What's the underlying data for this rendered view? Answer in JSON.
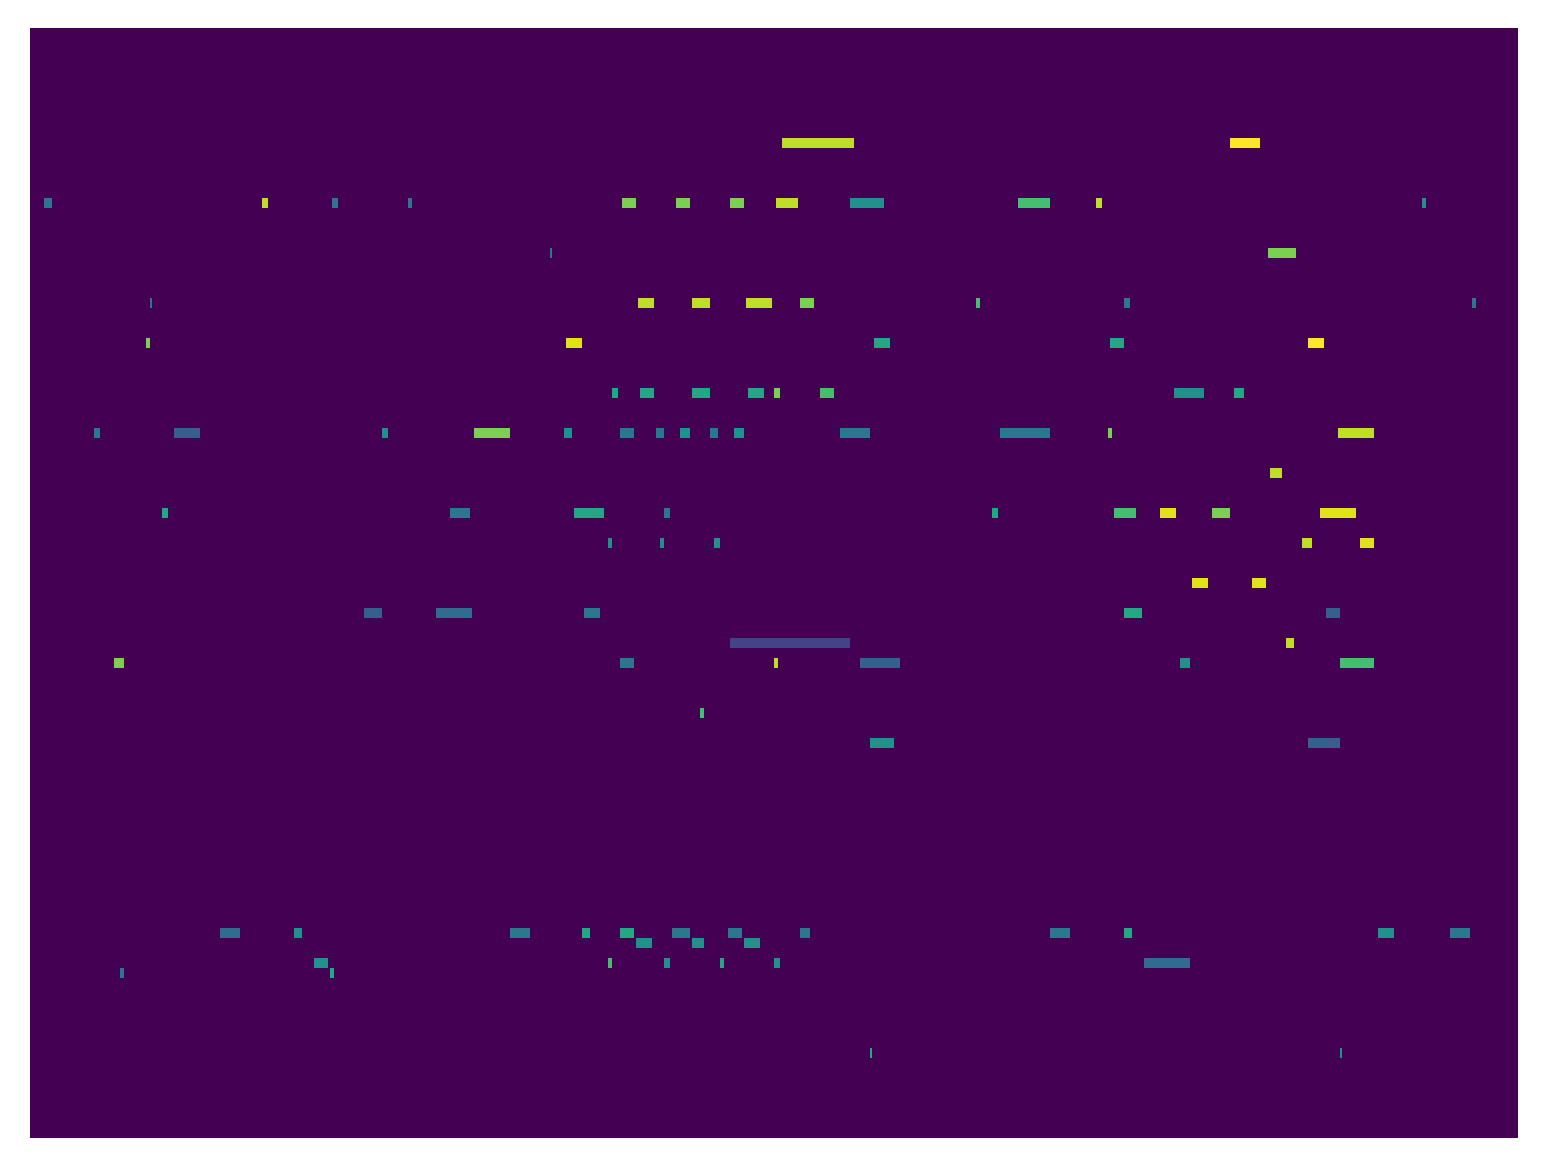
{
  "chart_data": {
    "type": "heatmap",
    "tick_labels": false,
    "xlim": [
      0,
      744
    ],
    "ylim": [
      0,
      111
    ],
    "zlim": [
      0,
      1
    ],
    "cells": [
      [
        376,
        412,
        99,
        0.9
      ],
      [
        600,
        615,
        99,
        1.0
      ],
      [
        7,
        11,
        93,
        0.4
      ],
      [
        116,
        119,
        93,
        0.9
      ],
      [
        151,
        154,
        93,
        0.4
      ],
      [
        189,
        191,
        93,
        0.4
      ],
      [
        296,
        303,
        93,
        0.8
      ],
      [
        323,
        330,
        93,
        0.8
      ],
      [
        350,
        357,
        93,
        0.8
      ],
      [
        373,
        384,
        93,
        0.9
      ],
      [
        410,
        427,
        93,
        0.5
      ],
      [
        494,
        510,
        93,
        0.7
      ],
      [
        533,
        536,
        93,
        0.9
      ],
      [
        696,
        698,
        93,
        0.5
      ],
      [
        619,
        633,
        88,
        0.8
      ],
      [
        260,
        261,
        88,
        0.4
      ],
      [
        304,
        312,
        83,
        0.9
      ],
      [
        331,
        340,
        83,
        0.9
      ],
      [
        358,
        371,
        83,
        0.9
      ],
      [
        385,
        392,
        83,
        0.8
      ],
      [
        473,
        475,
        83,
        0.7
      ],
      [
        547,
        550,
        83,
        0.4
      ],
      [
        721,
        723,
        83,
        0.4
      ],
      [
        60,
        61,
        83,
        0.4
      ],
      [
        268,
        276,
        79,
        0.95
      ],
      [
        422,
        430,
        79,
        0.6
      ],
      [
        540,
        547,
        79,
        0.6
      ],
      [
        639,
        647,
        79,
        1.0
      ],
      [
        58,
        60,
        79,
        0.8
      ],
      [
        291,
        294,
        74,
        0.6
      ],
      [
        305,
        312,
        74,
        0.6
      ],
      [
        331,
        340,
        74,
        0.6
      ],
      [
        359,
        367,
        74,
        0.6
      ],
      [
        372,
        375,
        74,
        0.8
      ],
      [
        395,
        402,
        74,
        0.7
      ],
      [
        572,
        587,
        74,
        0.5
      ],
      [
        602,
        607,
        74,
        0.6
      ],
      [
        222,
        240,
        70,
        0.8
      ],
      [
        267,
        271,
        70,
        0.5
      ],
      [
        295,
        302,
        70,
        0.4
      ],
      [
        313,
        317,
        70,
        0.4
      ],
      [
        325,
        330,
        70,
        0.5
      ],
      [
        340,
        344,
        70,
        0.4
      ],
      [
        352,
        357,
        70,
        0.5
      ],
      [
        405,
        420,
        70,
        0.4
      ],
      [
        485,
        510,
        70,
        0.4
      ],
      [
        539,
        541,
        70,
        0.8
      ],
      [
        654,
        672,
        70,
        0.9
      ],
      [
        32,
        35,
        70,
        0.4
      ],
      [
        72,
        85,
        70,
        0.3
      ],
      [
        176,
        179,
        70,
        0.5
      ],
      [
        620,
        626,
        66,
        0.9
      ],
      [
        272,
        287,
        62,
        0.6
      ],
      [
        542,
        553,
        62,
        0.7
      ],
      [
        565,
        573,
        62,
        0.95
      ],
      [
        591,
        600,
        62,
        0.8
      ],
      [
        645,
        663,
        62,
        0.95
      ],
      [
        66,
        69,
        62,
        0.6
      ],
      [
        210,
        220,
        62,
        0.4
      ],
      [
        317,
        320,
        62,
        0.4
      ],
      [
        481,
        484,
        62,
        0.6
      ],
      [
        289,
        291,
        59,
        0.5
      ],
      [
        315,
        317,
        59,
        0.5
      ],
      [
        342,
        345,
        59,
        0.5
      ],
      [
        636,
        641,
        59,
        0.9
      ],
      [
        665,
        672,
        59,
        0.95
      ],
      [
        581,
        589,
        55,
        0.95
      ],
      [
        611,
        618,
        55,
        0.95
      ],
      [
        167,
        176,
        52,
        0.3
      ],
      [
        203,
        221,
        52,
        0.35
      ],
      [
        277,
        285,
        52,
        0.4
      ],
      [
        547,
        556,
        52,
        0.6
      ],
      [
        648,
        655,
        52,
        0.3
      ],
      [
        628,
        632,
        49,
        0.9
      ],
      [
        350,
        410,
        49,
        0.2
      ],
      [
        42,
        47,
        47,
        0.8
      ],
      [
        295,
        302,
        47,
        0.4
      ],
      [
        372,
        374,
        47,
        0.9
      ],
      [
        575,
        580,
        47,
        0.5
      ],
      [
        655,
        672,
        47,
        0.7
      ],
      [
        415,
        435,
        47,
        0.3
      ],
      [
        335,
        337,
        42,
        0.7
      ],
      [
        420,
        432,
        39,
        0.5
      ],
      [
        639,
        655,
        39,
        0.3
      ],
      [
        95,
        105,
        20,
        0.35
      ],
      [
        132,
        136,
        20,
        0.5
      ],
      [
        240,
        250,
        20,
        0.4
      ],
      [
        276,
        280,
        20,
        0.6
      ],
      [
        295,
        302,
        20,
        0.6
      ],
      [
        321,
        330,
        20,
        0.4
      ],
      [
        349,
        356,
        20,
        0.4
      ],
      [
        385,
        390,
        20,
        0.4
      ],
      [
        510,
        520,
        20,
        0.4
      ],
      [
        547,
        551,
        20,
        0.6
      ],
      [
        674,
        682,
        20,
        0.5
      ],
      [
        710,
        720,
        20,
        0.4
      ],
      [
        303,
        311,
        19,
        0.5
      ],
      [
        331,
        337,
        19,
        0.5
      ],
      [
        357,
        365,
        19,
        0.5
      ],
      [
        142,
        149,
        17,
        0.5
      ],
      [
        289,
        291,
        17,
        0.7
      ],
      [
        317,
        320,
        17,
        0.5
      ],
      [
        345,
        347,
        17,
        0.6
      ],
      [
        372,
        375,
        17,
        0.5
      ],
      [
        557,
        580,
        17,
        0.35
      ],
      [
        150,
        152,
        16,
        0.6
      ],
      [
        45,
        47,
        16,
        0.4
      ],
      [
        420,
        421,
        8,
        0.6
      ],
      [
        655,
        656,
        8,
        0.5
      ]
    ]
  }
}
